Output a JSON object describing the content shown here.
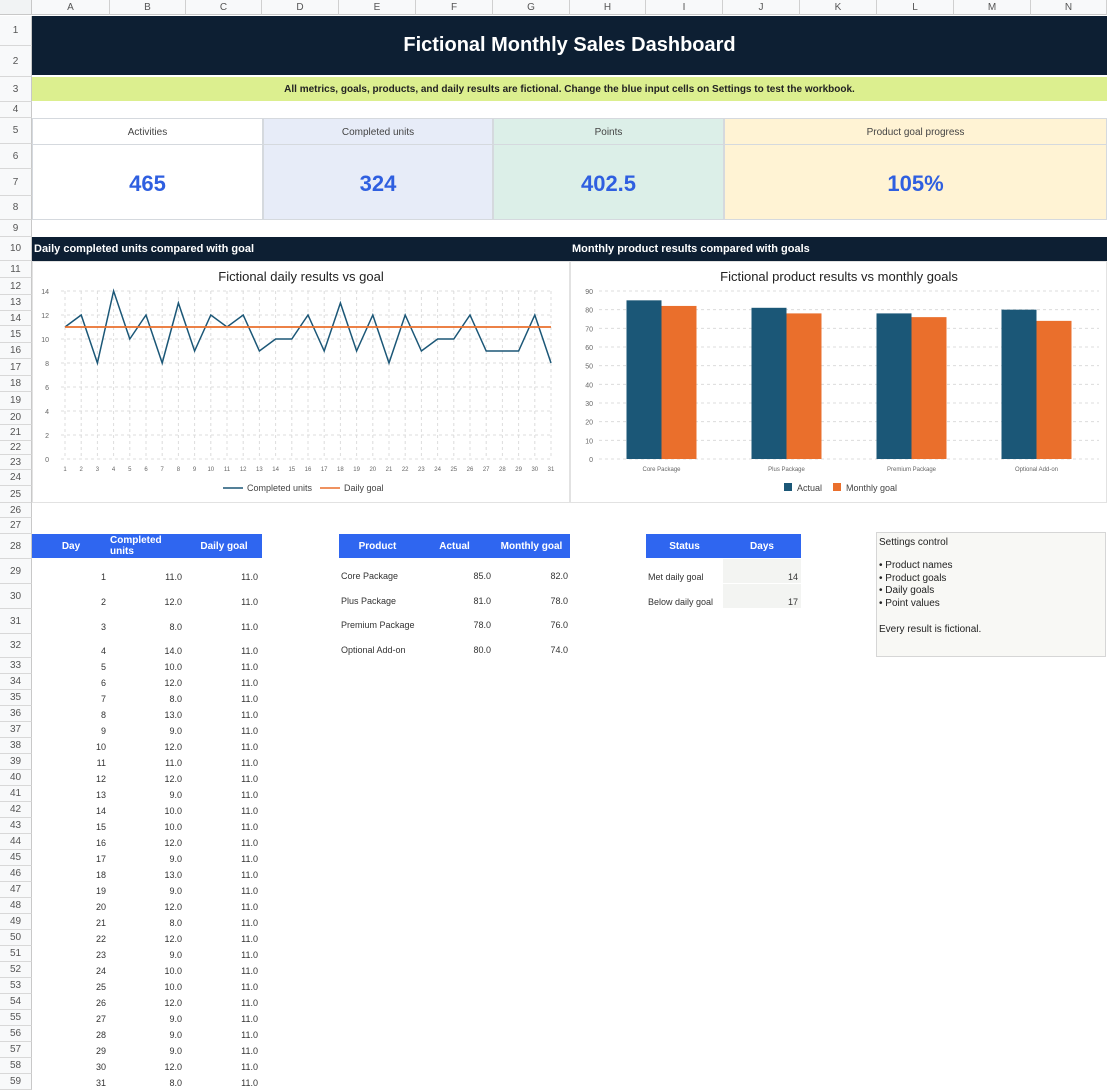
{
  "columns": [
    "A",
    "B",
    "C",
    "D",
    "E",
    "F",
    "G",
    "H",
    "I",
    "J",
    "K",
    "L",
    "M",
    "N"
  ],
  "rows": [
    "1",
    "2",
    "3",
    "4",
    "5",
    "6",
    "7",
    "8",
    "9",
    "10",
    "11",
    "12",
    "13",
    "14",
    "15",
    "16",
    "17",
    "18",
    "19",
    "20",
    "21",
    "22",
    "23",
    "24",
    "25",
    "26",
    "27",
    "28",
    "29",
    "30",
    "31",
    "32",
    "33",
    "34",
    "35",
    "36",
    "37",
    "38",
    "39",
    "40",
    "41",
    "42",
    "43",
    "44",
    "45",
    "46",
    "47",
    "48",
    "49",
    "50",
    "51",
    "52",
    "53",
    "54",
    "55",
    "56",
    "57",
    "58",
    "59"
  ],
  "title": "Fictional Monthly Sales Dashboard",
  "note": "All metrics, goals, products, and daily results are fictional. Change the blue input cells on Settings to test the workbook.",
  "kpis": [
    {
      "label": "Activities",
      "value": "465",
      "bg": "#ffffff"
    },
    {
      "label": "Completed units",
      "value": "324",
      "bg": "#e7ecf8"
    },
    {
      "label": "Points",
      "value": "402.5",
      "bg": "#dcefe8"
    },
    {
      "label": "Product goal progress",
      "value": "105%",
      "bg": "#fff3d4"
    }
  ],
  "sections": {
    "left": "Daily completed units compared with goal",
    "right": "Monthly product results compared with goals"
  },
  "chart_data": [
    {
      "type": "line",
      "title": "Fictional daily results vs goal",
      "x": [
        1,
        2,
        3,
        4,
        5,
        6,
        7,
        8,
        9,
        10,
        11,
        12,
        13,
        14,
        15,
        16,
        17,
        18,
        19,
        20,
        21,
        22,
        23,
        24,
        25,
        26,
        27,
        28,
        29,
        30,
        31
      ],
      "series": [
        {
          "name": "Completed units",
          "color": "#1b5777",
          "values": [
            11,
            12,
            8,
            14,
            10,
            12,
            8,
            13,
            9,
            12,
            11,
            12,
            9,
            10,
            10,
            12,
            9,
            13,
            9,
            12,
            8,
            12,
            9,
            10,
            10,
            12,
            9,
            9,
            9,
            12,
            8
          ]
        },
        {
          "name": "Daily goal",
          "color": "#ea6f2c",
          "values": [
            11,
            11,
            11,
            11,
            11,
            11,
            11,
            11,
            11,
            11,
            11,
            11,
            11,
            11,
            11,
            11,
            11,
            11,
            11,
            11,
            11,
            11,
            11,
            11,
            11,
            11,
            11,
            11,
            11,
            11,
            11
          ]
        }
      ],
      "yticks": [
        0,
        2,
        4,
        6,
        8,
        10,
        12,
        14
      ],
      "ylim": [
        0,
        14
      ],
      "grid": true,
      "legend": "bottom"
    },
    {
      "type": "bar",
      "title": "Fictional product results vs monthly goals",
      "categories": [
        "Core Package",
        "Plus Package",
        "Premium Package",
        "Optional Add-on"
      ],
      "series": [
        {
          "name": "Actual",
          "color": "#1b5777",
          "values": [
            85,
            81,
            78,
            80
          ]
        },
        {
          "name": "Monthly goal",
          "color": "#ea6f2c",
          "values": [
            82,
            78,
            76,
            74
          ]
        }
      ],
      "yticks": [
        0,
        10,
        20,
        30,
        40,
        50,
        60,
        70,
        80,
        90
      ],
      "ylim": [
        0,
        90
      ],
      "grid": true,
      "legend": "bottom"
    }
  ],
  "daily_table": {
    "headers": [
      "Day",
      "Completed units",
      "Daily goal"
    ],
    "rows": [
      [
        "1",
        "11.0",
        "11.0"
      ],
      [
        "2",
        "12.0",
        "11.0"
      ],
      [
        "3",
        "8.0",
        "11.0"
      ],
      [
        "4",
        "14.0",
        "11.0"
      ],
      [
        "5",
        "10.0",
        "11.0"
      ],
      [
        "6",
        "12.0",
        "11.0"
      ],
      [
        "7",
        "8.0",
        "11.0"
      ],
      [
        "8",
        "13.0",
        "11.0"
      ],
      [
        "9",
        "9.0",
        "11.0"
      ],
      [
        "10",
        "12.0",
        "11.0"
      ],
      [
        "11",
        "11.0",
        "11.0"
      ],
      [
        "12",
        "12.0",
        "11.0"
      ],
      [
        "13",
        "9.0",
        "11.0"
      ],
      [
        "14",
        "10.0",
        "11.0"
      ],
      [
        "15",
        "10.0",
        "11.0"
      ],
      [
        "16",
        "12.0",
        "11.0"
      ],
      [
        "17",
        "9.0",
        "11.0"
      ],
      [
        "18",
        "13.0",
        "11.0"
      ],
      [
        "19",
        "9.0",
        "11.0"
      ],
      [
        "20",
        "12.0",
        "11.0"
      ],
      [
        "21",
        "8.0",
        "11.0"
      ],
      [
        "22",
        "12.0",
        "11.0"
      ],
      [
        "23",
        "9.0",
        "11.0"
      ],
      [
        "24",
        "10.0",
        "11.0"
      ],
      [
        "25",
        "10.0",
        "11.0"
      ],
      [
        "26",
        "12.0",
        "11.0"
      ],
      [
        "27",
        "9.0",
        "11.0"
      ],
      [
        "28",
        "9.0",
        "11.0"
      ],
      [
        "29",
        "9.0",
        "11.0"
      ],
      [
        "30",
        "12.0",
        "11.0"
      ],
      [
        "31",
        "8.0",
        "11.0"
      ]
    ]
  },
  "product_table": {
    "headers": [
      "Product",
      "Actual",
      "Monthly goal"
    ],
    "rows": [
      [
        "Core Package",
        "85.0",
        "82.0"
      ],
      [
        "Plus Package",
        "81.0",
        "78.0"
      ],
      [
        "Premium Package",
        "78.0",
        "76.0"
      ],
      [
        "Optional Add-on",
        "80.0",
        "74.0"
      ]
    ]
  },
  "status_table": {
    "headers": [
      "Status",
      "Days"
    ],
    "rows": [
      [
        "Met daily goal",
        "14"
      ],
      [
        "Below daily goal",
        "17"
      ]
    ]
  },
  "settings_note": {
    "title": "Settings control",
    "items": [
      "Product names",
      "Product goals",
      "Daily goals",
      "Point values"
    ],
    "footer": "Every result is fictional."
  }
}
